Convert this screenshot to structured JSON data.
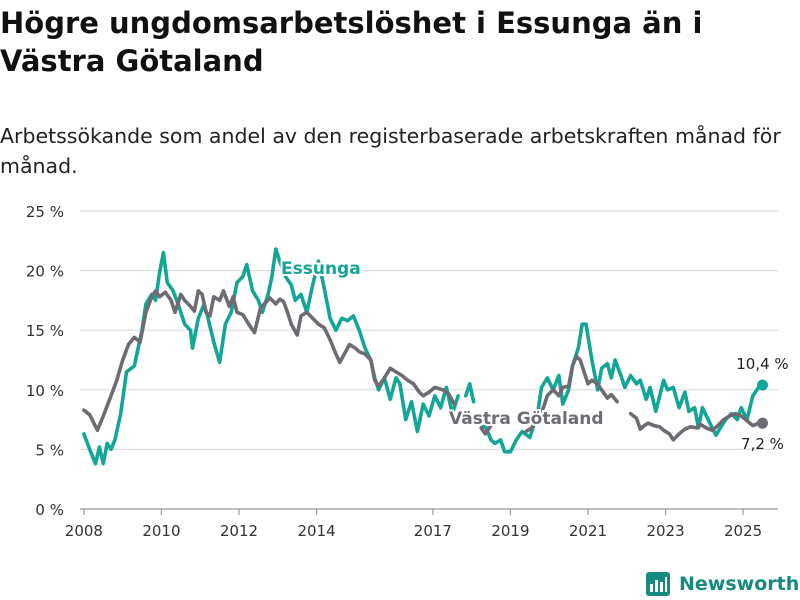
{
  "header": {
    "title": "Högre ungdomsarbetslöshet i Essunga än i Västra Götaland",
    "subtitle": "Arbetssökande som andel av den registerbaserade arbetskraften månad för månad."
  },
  "brand": {
    "name": "Newsworthy",
    "icon": "newsworthy-logo-icon",
    "color": "#168a7c"
  },
  "chart_data": {
    "type": "line",
    "title": "",
    "xlabel": "",
    "ylabel": "",
    "x_unit": "year (monthly data)",
    "xlim": [
      2007.9,
      2025.9
    ],
    "ylim": [
      0,
      25
    ],
    "grid": true,
    "yticks": [
      0,
      5,
      10,
      15,
      20,
      25
    ],
    "ytick_labels": [
      "0 %",
      "5 %",
      "10 %",
      "15 %",
      "20 %",
      "25 %"
    ],
    "xticks": [
      2008,
      2010,
      2012,
      2014,
      2017,
      2019,
      2021,
      2023,
      2025
    ],
    "xtick_labels": [
      "2008",
      "2010",
      "2012",
      "2014",
      "2017",
      "2019",
      "2021",
      "2023",
      "2025"
    ],
    "series": [
      {
        "name": "Essunga",
        "color": "#13a596",
        "label": "Essunga",
        "end_label": "10,4 %",
        "segments": [
          [
            [
              2008.0,
              6.3
            ],
            [
              2008.15,
              5.0
            ],
            [
              2008.3,
              3.8
            ],
            [
              2008.4,
              5.2
            ],
            [
              2008.5,
              3.8
            ],
            [
              2008.6,
              5.5
            ],
            [
              2008.7,
              5.0
            ],
            [
              2008.8,
              5.8
            ],
            [
              2008.95,
              8.0
            ],
            [
              2009.1,
              11.5
            ],
            [
              2009.3,
              12.0
            ],
            [
              2009.5,
              15.0
            ],
            [
              2009.6,
              17.2
            ],
            [
              2009.75,
              18.0
            ],
            [
              2009.85,
              17.5
            ],
            [
              2009.95,
              19.8
            ],
            [
              2010.05,
              21.5
            ],
            [
              2010.15,
              19.0
            ],
            [
              2010.3,
              18.3
            ],
            [
              2010.45,
              17.0
            ],
            [
              2010.6,
              15.5
            ],
            [
              2010.75,
              15.0
            ],
            [
              2010.8,
              13.5
            ],
            [
              2010.95,
              16.0
            ],
            [
              2011.1,
              17.2
            ],
            [
              2011.2,
              16.0
            ],
            [
              2011.35,
              14.0
            ],
            [
              2011.5,
              12.3
            ],
            [
              2011.65,
              15.5
            ],
            [
              2011.8,
              16.5
            ],
            [
              2011.95,
              19.0
            ],
            [
              2012.1,
              19.5
            ],
            [
              2012.2,
              20.5
            ],
            [
              2012.35,
              18.3
            ],
            [
              2012.5,
              17.5
            ],
            [
              2012.6,
              16.5
            ],
            [
              2012.75,
              18.0
            ],
            [
              2012.85,
              19.5
            ],
            [
              2012.95,
              21.8
            ],
            [
              2013.05,
              20.8
            ],
            [
              2013.2,
              19.5
            ],
            [
              2013.35,
              18.8
            ],
            [
              2013.45,
              17.5
            ],
            [
              2013.6,
              18.0
            ],
            [
              2013.75,
              16.5
            ],
            [
              2013.9,
              18.8
            ],
            [
              2014.05,
              20.8
            ],
            [
              2014.2,
              18.5
            ],
            [
              2014.35,
              16.0
            ],
            [
              2014.5,
              15.0
            ],
            [
              2014.65,
              16.0
            ],
            [
              2014.8,
              15.8
            ],
            [
              2014.95,
              16.2
            ],
            [
              2015.1,
              15.0
            ],
            [
              2015.25,
              13.5
            ],
            [
              2015.4,
              12.5
            ],
            [
              2015.5,
              11.0
            ],
            [
              2015.6,
              10.0
            ],
            [
              2015.75,
              11.0
            ],
            [
              2015.9,
              9.2
            ],
            [
              2016.05,
              11.0
            ],
            [
              2016.15,
              10.5
            ],
            [
              2016.3,
              7.5
            ],
            [
              2016.45,
              9.0
            ],
            [
              2016.6,
              6.5
            ],
            [
              2016.75,
              8.8
            ],
            [
              2016.9,
              7.8
            ],
            [
              2017.05,
              9.5
            ],
            [
              2017.2,
              8.5
            ],
            [
              2017.35,
              10.2
            ],
            [
              2017.5,
              8.0
            ],
            [
              2017.65,
              9.5
            ]
          ],
          [
            [
              2017.85,
              9.5
            ],
            [
              2017.95,
              10.5
            ],
            [
              2018.05,
              9.0
            ]
          ],
          [
            [
              2018.25,
              6.8
            ],
            [
              2018.35,
              7.0
            ],
            [
              2018.5,
              5.8
            ],
            [
              2018.6,
              5.5
            ],
            [
              2018.75,
              5.8
            ],
            [
              2018.85,
              4.8
            ],
            [
              2019.0,
              4.8
            ],
            [
              2019.15,
              5.8
            ],
            [
              2019.3,
              6.5
            ],
            [
              2019.5,
              6.0
            ],
            [
              2019.6,
              7.0
            ],
            [
              2019.7,
              8.0
            ],
            [
              2019.8,
              10.2
            ],
            [
              2019.95,
              11.0
            ],
            [
              2020.1,
              10.0
            ],
            [
              2020.25,
              11.2
            ],
            [
              2020.35,
              8.8
            ],
            [
              2020.5,
              10.0
            ],
            [
              2020.6,
              12.0
            ],
            [
              2020.75,
              13.5
            ],
            [
              2020.85,
              15.5
            ],
            [
              2020.95,
              15.5
            ],
            [
              2021.1,
              12.5
            ],
            [
              2021.25,
              10.0
            ],
            [
              2021.35,
              11.8
            ],
            [
              2021.5,
              12.2
            ],
            [
              2021.6,
              11.0
            ],
            [
              2021.7,
              12.5
            ],
            [
              2021.85,
              11.2
            ],
            [
              2021.95,
              10.2
            ],
            [
              2022.1,
              11.2
            ],
            [
              2022.25,
              10.5
            ],
            [
              2022.35,
              10.8
            ],
            [
              2022.5,
              9.2
            ],
            [
              2022.6,
              10.2
            ],
            [
              2022.75,
              8.2
            ],
            [
              2022.85,
              9.5
            ],
            [
              2022.95,
              10.8
            ],
            [
              2023.05,
              10.0
            ],
            [
              2023.2,
              10.2
            ],
            [
              2023.35,
              8.5
            ],
            [
              2023.5,
              9.8
            ],
            [
              2023.6,
              8.2
            ],
            [
              2023.75,
              8.5
            ],
            [
              2023.85,
              6.8
            ],
            [
              2023.95,
              8.5
            ],
            [
              2024.1,
              7.5
            ],
            [
              2024.2,
              6.8
            ],
            [
              2024.3,
              6.2
            ],
            [
              2024.45,
              7.0
            ],
            [
              2024.55,
              7.5
            ],
            [
              2024.7,
              8.0
            ],
            [
              2024.85,
              7.5
            ],
            [
              2024.95,
              8.5
            ],
            [
              2025.1,
              7.5
            ],
            [
              2025.25,
              9.5
            ],
            [
              2025.4,
              10.2
            ],
            [
              2025.5,
              10.4
            ]
          ]
        ]
      },
      {
        "name": "Västra Götaland",
        "color": "#6e6b73",
        "label": "Västra Götaland",
        "end_label": "7,2 %",
        "segments": [
          [
            [
              2008.0,
              8.3
            ],
            [
              2008.15,
              7.9
            ],
            [
              2008.35,
              6.6
            ],
            [
              2008.5,
              7.8
            ],
            [
              2008.7,
              9.5
            ],
            [
              2008.85,
              10.8
            ],
            [
              2009.0,
              12.5
            ],
            [
              2009.15,
              13.8
            ],
            [
              2009.3,
              14.4
            ],
            [
              2009.45,
              14.0
            ],
            [
              2009.6,
              16.5
            ],
            [
              2009.75,
              17.8
            ],
            [
              2009.85,
              18.3
            ],
            [
              2009.95,
              17.8
            ],
            [
              2010.1,
              18.2
            ],
            [
              2010.25,
              17.5
            ],
            [
              2010.35,
              16.5
            ],
            [
              2010.5,
              18.0
            ],
            [
              2010.6,
              17.5
            ],
            [
              2010.75,
              17.0
            ],
            [
              2010.85,
              16.6
            ],
            [
              2010.95,
              18.3
            ],
            [
              2011.05,
              18.0
            ],
            [
              2011.15,
              16.5
            ],
            [
              2011.25,
              16.2
            ],
            [
              2011.35,
              17.8
            ],
            [
              2011.5,
              17.5
            ],
            [
              2011.6,
              18.3
            ],
            [
              2011.75,
              17.0
            ],
            [
              2011.85,
              17.8
            ],
            [
              2011.95,
              16.5
            ],
            [
              2012.1,
              16.3
            ],
            [
              2012.25,
              15.5
            ],
            [
              2012.4,
              14.8
            ],
            [
              2012.55,
              16.8
            ],
            [
              2012.65,
              17.2
            ],
            [
              2012.8,
              17.7
            ],
            [
              2012.95,
              17.2
            ],
            [
              2013.05,
              17.6
            ],
            [
              2013.15,
              17.4
            ],
            [
              2013.25,
              16.5
            ],
            [
              2013.35,
              15.5
            ],
            [
              2013.5,
              14.6
            ],
            [
              2013.6,
              16.2
            ],
            [
              2013.75,
              16.5
            ],
            [
              2013.9,
              16.0
            ],
            [
              2014.05,
              15.5
            ],
            [
              2014.2,
              15.2
            ],
            [
              2014.35,
              14.2
            ],
            [
              2014.5,
              13.0
            ],
            [
              2014.6,
              12.3
            ],
            [
              2014.75,
              13.2
            ],
            [
              2014.85,
              13.8
            ],
            [
              2015.0,
              13.5
            ],
            [
              2015.1,
              13.2
            ],
            [
              2015.25,
              13.0
            ],
            [
              2015.4,
              12.5
            ],
            [
              2015.5,
              10.8
            ],
            [
              2015.6,
              10.3
            ],
            [
              2015.75,
              11.0
            ],
            [
              2015.9,
              11.8
            ],
            [
              2016.05,
              11.5
            ],
            [
              2016.2,
              11.2
            ],
            [
              2016.35,
              10.8
            ],
            [
              2016.5,
              10.5
            ],
            [
              2016.65,
              9.8
            ],
            [
              2016.75,
              9.5
            ],
            [
              2016.9,
              9.8
            ],
            [
              2017.05,
              10.2
            ],
            [
              2017.25,
              10.0
            ],
            [
              2017.4,
              9.7
            ],
            [
              2017.55,
              8.8
            ]
          ],
          [
            [
              2018.25,
              6.8
            ],
            [
              2018.35,
              6.3
            ],
            [
              2018.5,
              7.0
            ]
          ],
          [
            [
              2019.4,
              6.5
            ],
            [
              2019.55,
              6.8
            ],
            [
              2019.7,
              7.7
            ],
            [
              2019.85,
              8.5
            ],
            [
              2019.95,
              9.5
            ],
            [
              2020.1,
              10.0
            ],
            [
              2020.25,
              9.5
            ],
            [
              2020.35,
              10.2
            ],
            [
              2020.5,
              10.3
            ],
            [
              2020.6,
              12.0
            ],
            [
              2020.7,
              12.8
            ],
            [
              2020.8,
              12.5
            ],
            [
              2020.9,
              11.5
            ],
            [
              2021.0,
              10.5
            ],
            [
              2021.1,
              10.8
            ],
            [
              2021.25,
              10.5
            ],
            [
              2021.35,
              10.0
            ],
            [
              2021.5,
              9.3
            ],
            [
              2021.6,
              9.6
            ],
            [
              2021.75,
              9.0
            ]
          ],
          [
            [
              2022.1,
              8.0
            ],
            [
              2022.25,
              7.6
            ],
            [
              2022.35,
              6.7
            ],
            [
              2022.45,
              7.0
            ],
            [
              2022.55,
              7.2
            ],
            [
              2022.7,
              7.0
            ],
            [
              2022.85,
              6.9
            ],
            [
              2022.95,
              6.6
            ],
            [
              2023.1,
              6.3
            ],
            [
              2023.2,
              5.8
            ],
            [
              2023.35,
              6.3
            ],
            [
              2023.5,
              6.7
            ],
            [
              2023.65,
              6.9
            ],
            [
              2023.8,
              6.8
            ],
            [
              2023.9,
              7.1
            ],
            [
              2024.05,
              6.8
            ],
            [
              2024.2,
              6.6
            ],
            [
              2024.35,
              7.0
            ],
            [
              2024.5,
              7.5
            ],
            [
              2024.65,
              7.8
            ],
            [
              2024.8,
              8.0
            ],
            [
              2024.95,
              7.8
            ],
            [
              2025.1,
              7.4
            ],
            [
              2025.25,
              7.0
            ],
            [
              2025.4,
              7.2
            ],
            [
              2025.5,
              7.2
            ]
          ]
        ]
      }
    ]
  }
}
